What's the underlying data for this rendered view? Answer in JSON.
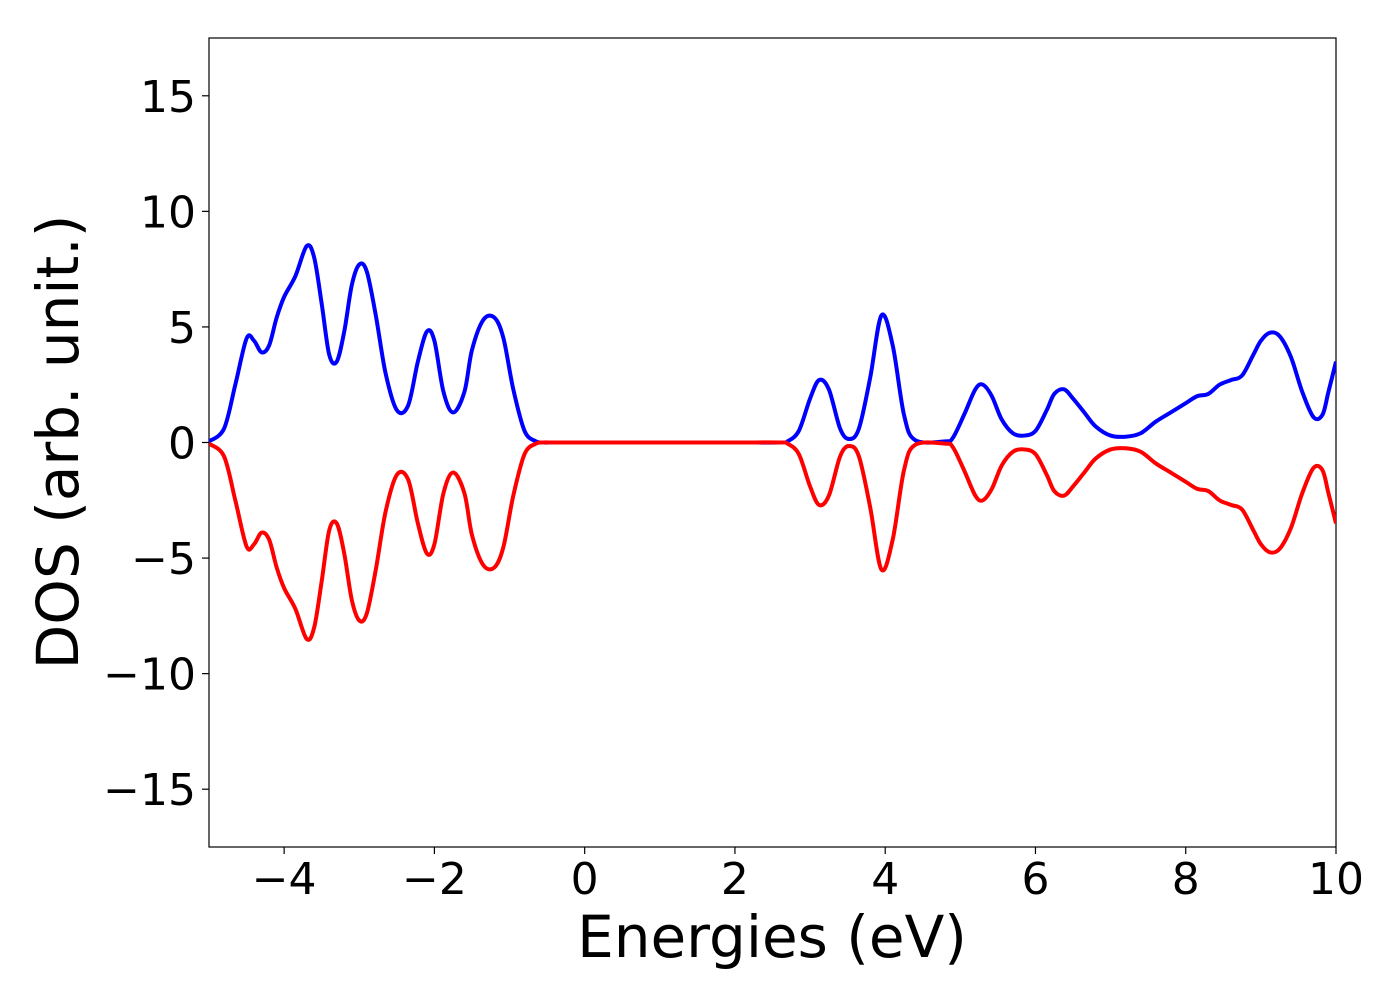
{
  "chart_data": {
    "type": "line",
    "title": "",
    "xlabel": "Energies (eV)",
    "ylabel": "DOS (arb. unit.)",
    "xlim": [
      -5,
      10
    ],
    "ylim": [
      -17.5,
      17.5
    ],
    "grid": false,
    "legend": "none",
    "x_ticks": [
      -4,
      -2,
      0,
      2,
      4,
      6,
      8,
      10
    ],
    "y_ticks": [
      -15,
      -10,
      -5,
      0,
      5,
      10,
      15
    ],
    "x_tick_labels": [
      "−4",
      "−2",
      "0",
      "2",
      "4",
      "6",
      "8",
      "10"
    ],
    "y_tick_labels": [
      "−15",
      "−10",
      "−5",
      "0",
      "5",
      "10",
      "15"
    ],
    "series": [
      {
        "color": "#0000ff",
        "x": [
          -5.0,
          -4.8,
          -4.65,
          -4.5,
          -4.4,
          -4.3,
          -4.2,
          -4.1,
          -4.0,
          -3.85,
          -3.7,
          -3.6,
          -3.5,
          -3.4,
          -3.3,
          -3.2,
          -3.1,
          -3.0,
          -2.9,
          -2.78,
          -2.65,
          -2.5,
          -2.35,
          -2.22,
          -2.1,
          -2.0,
          -1.88,
          -1.75,
          -1.6,
          -1.5,
          -1.35,
          -1.2,
          -1.08,
          -0.95,
          -0.8,
          -0.65,
          -0.55,
          -0.4,
          0.0,
          1.0,
          2.0,
          2.6,
          2.7,
          2.85,
          3.0,
          3.12,
          3.25,
          3.4,
          3.52,
          3.65,
          3.8,
          3.95,
          4.1,
          4.25,
          4.4,
          4.8,
          4.9,
          5.05,
          5.2,
          5.3,
          5.42,
          5.55,
          5.7,
          5.85,
          6.0,
          6.15,
          6.25,
          6.38,
          6.5,
          6.65,
          6.8,
          7.0,
          7.2,
          7.4,
          7.6,
          7.8,
          8.0,
          8.15,
          8.3,
          8.45,
          8.6,
          8.75,
          8.9,
          9.0,
          9.12,
          9.25,
          9.4,
          9.55,
          9.7,
          9.82,
          9.9,
          10.0
        ],
        "values": [
          0.05,
          0.6,
          2.5,
          4.5,
          4.4,
          3.9,
          4.2,
          5.4,
          6.3,
          7.2,
          8.5,
          8.0,
          6.0,
          3.8,
          3.5,
          4.8,
          6.8,
          7.7,
          7.4,
          5.5,
          3.0,
          1.4,
          1.6,
          3.5,
          4.8,
          4.4,
          2.2,
          1.3,
          2.2,
          4.0,
          5.3,
          5.4,
          4.5,
          2.3,
          0.5,
          0.05,
          0.0,
          0.0,
          0.0,
          0.0,
          0.0,
          0.0,
          0.05,
          0.5,
          1.9,
          2.7,
          2.3,
          0.6,
          0.15,
          0.6,
          2.8,
          5.5,
          4.2,
          1.2,
          0.1,
          0.05,
          0.2,
          1.2,
          2.3,
          2.5,
          2.0,
          1.0,
          0.4,
          0.3,
          0.5,
          1.4,
          2.1,
          2.3,
          1.9,
          1.3,
          0.7,
          0.3,
          0.25,
          0.4,
          0.9,
          1.3,
          1.7,
          2.0,
          2.1,
          2.5,
          2.7,
          2.9,
          3.8,
          4.4,
          4.75,
          4.6,
          3.7,
          2.2,
          1.1,
          1.2,
          2.2,
          3.5
        ]
      },
      {
        "color": "#ff0000",
        "x": [
          -5.0,
          -4.8,
          -4.65,
          -4.5,
          -4.4,
          -4.3,
          -4.2,
          -4.1,
          -4.0,
          -3.85,
          -3.7,
          -3.6,
          -3.5,
          -3.4,
          -3.3,
          -3.2,
          -3.1,
          -3.0,
          -2.9,
          -2.78,
          -2.65,
          -2.5,
          -2.35,
          -2.22,
          -2.1,
          -2.0,
          -1.88,
          -1.75,
          -1.6,
          -1.5,
          -1.35,
          -1.2,
          -1.08,
          -0.95,
          -0.8,
          -0.65,
          -0.55,
          -0.4,
          0.0,
          1.0,
          2.0,
          2.6,
          2.7,
          2.85,
          3.0,
          3.12,
          3.25,
          3.4,
          3.52,
          3.65,
          3.8,
          3.95,
          4.1,
          4.25,
          4.4,
          4.8,
          4.9,
          5.05,
          5.2,
          5.3,
          5.42,
          5.55,
          5.7,
          5.85,
          6.0,
          6.15,
          6.25,
          6.38,
          6.5,
          6.65,
          6.8,
          7.0,
          7.2,
          7.4,
          7.6,
          7.8,
          8.0,
          8.15,
          8.3,
          8.45,
          8.6,
          8.75,
          8.9,
          9.0,
          9.12,
          9.25,
          9.4,
          9.55,
          9.7,
          9.82,
          9.9,
          10.0
        ],
        "values": [
          -0.05,
          -0.6,
          -2.5,
          -4.5,
          -4.4,
          -3.9,
          -4.2,
          -5.4,
          -6.3,
          -7.2,
          -8.5,
          -8.0,
          -6.0,
          -3.8,
          -3.5,
          -4.8,
          -6.8,
          -7.7,
          -7.4,
          -5.5,
          -3.0,
          -1.4,
          -1.6,
          -3.5,
          -4.8,
          -4.4,
          -2.2,
          -1.3,
          -2.2,
          -4.0,
          -5.3,
          -5.4,
          -4.5,
          -2.3,
          -0.5,
          -0.05,
          0.0,
          0.0,
          0.0,
          0.0,
          0.0,
          0.0,
          -0.05,
          -0.5,
          -1.9,
          -2.7,
          -2.3,
          -0.6,
          -0.15,
          -0.6,
          -2.8,
          -5.5,
          -4.2,
          -1.2,
          -0.1,
          -0.05,
          -0.2,
          -1.2,
          -2.3,
          -2.5,
          -2.0,
          -1.0,
          -0.4,
          -0.3,
          -0.5,
          -1.4,
          -2.1,
          -2.3,
          -1.9,
          -1.3,
          -0.7,
          -0.3,
          -0.25,
          -0.4,
          -0.9,
          -1.3,
          -1.7,
          -2.0,
          -2.1,
          -2.5,
          -2.7,
          -2.9,
          -3.8,
          -4.4,
          -4.75,
          -4.6,
          -3.7,
          -2.2,
          -1.1,
          -1.2,
          -2.2,
          -3.5
        ]
      }
    ]
  }
}
